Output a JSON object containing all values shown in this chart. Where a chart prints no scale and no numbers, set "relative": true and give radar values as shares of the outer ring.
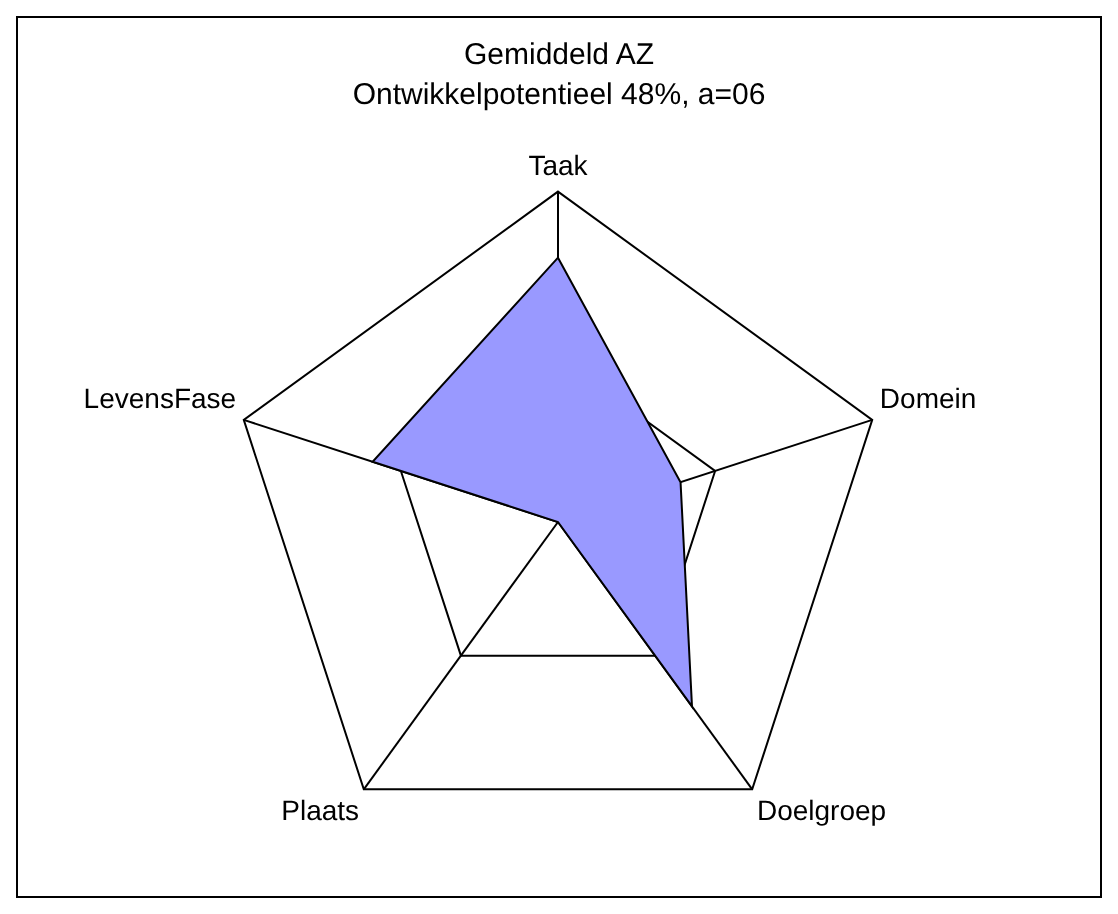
{
  "chart_data": {
    "type": "radar",
    "title": "Gemiddeld AZ",
    "subtitle": "Ontwikkelpotentieel 48%, a=06",
    "categories": [
      "Taak",
      "Domein",
      "Doelgroep",
      "Plaats",
      "LevensFase"
    ],
    "series": [
      {
        "color": "#9999ff",
        "values": [
          0.8,
          0.39,
          0.69,
          0,
          0.59
        ]
      }
    ],
    "relative": true,
    "grid": true,
    "legend": false
  }
}
